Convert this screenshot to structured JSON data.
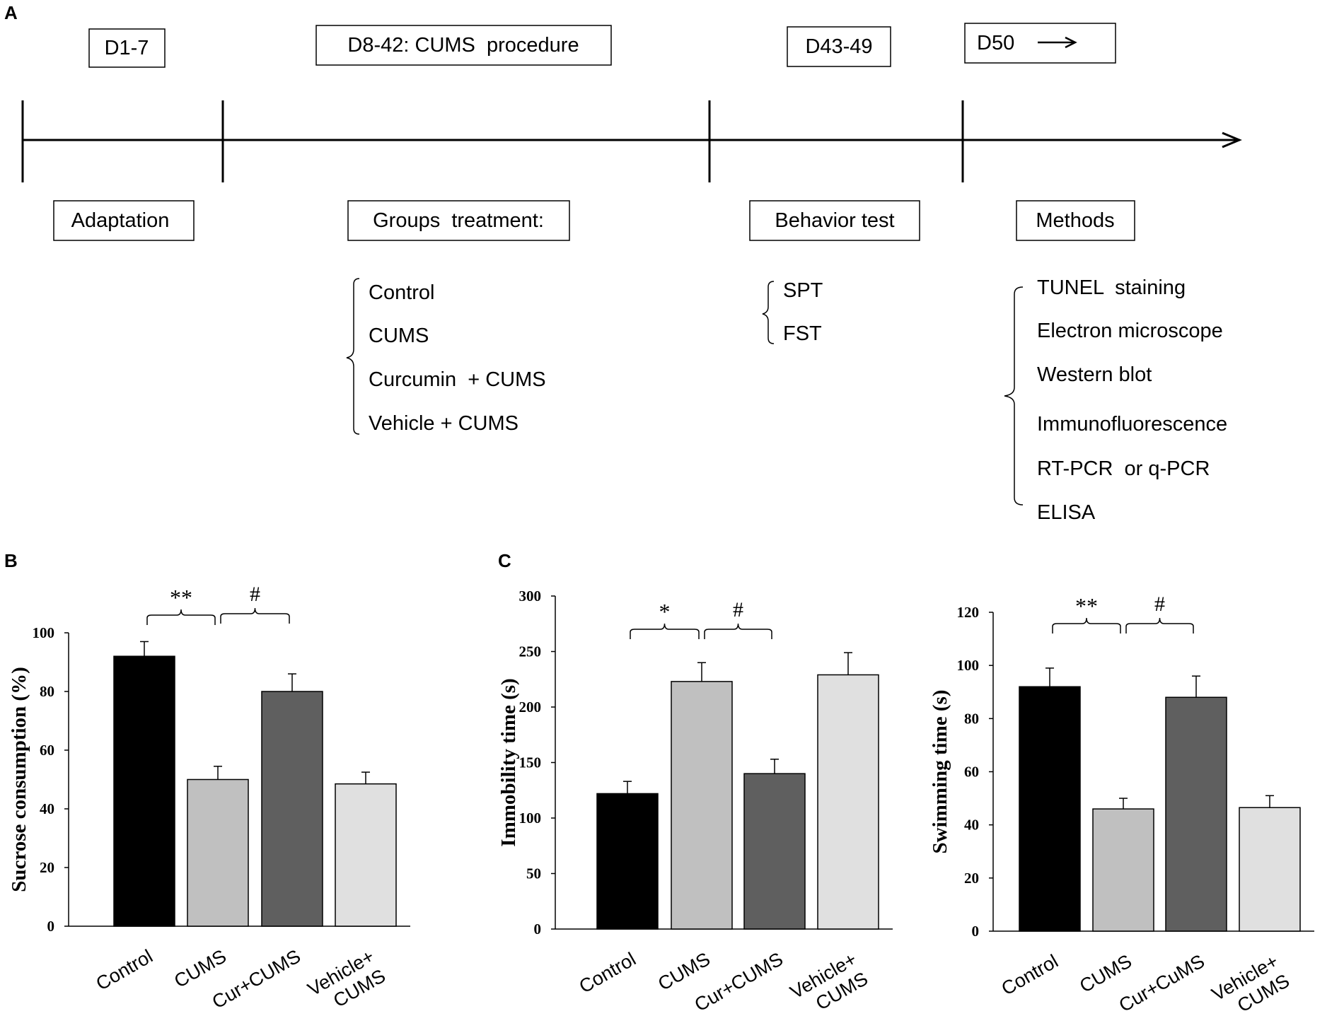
{
  "panel_labels": {
    "a": "A",
    "b": "B",
    "c": "C"
  },
  "timeline": {
    "top_boxes": [
      "D1-7",
      "D8-42: CUMS  procedure",
      "D43-49"
    ],
    "d50_label": "D50",
    "bottom_boxes": [
      "Adaptation",
      "Groups  treatment:",
      "Behavior test",
      "Methods"
    ],
    "groups": [
      "Control",
      "CUMS",
      "Curcumin  + CUMS",
      "Vehicle + CUMS"
    ],
    "tests": [
      "SPT",
      "FST"
    ],
    "methods": [
      "TUNEL  staining",
      "Electron microscope",
      "Western blot",
      "Immunofluorescence",
      "RT-PCR  or q-PCR",
      "ELISA"
    ]
  },
  "colors": {
    "control": "#000000",
    "cums": "#c0c0c0",
    "cur_cums": "#5f5f5f",
    "vehicle_cums": "#e0e0e0",
    "axis": "#000000"
  },
  "chart_data": [
    {
      "id": "B",
      "type": "bar",
      "ylabel": "Sucrose consumption (%)",
      "ylim": [
        0,
        100
      ],
      "yticks": [
        0,
        20,
        40,
        60,
        80,
        100
      ],
      "ytick_labels": [
        "0",
        "20",
        "40",
        "60",
        "80",
        "100"
      ],
      "categories": [
        "Control",
        "CUMS",
        "Cur+CUMS",
        "Vehicle+\nCUMS"
      ],
      "values": [
        92,
        50,
        80,
        48.5
      ],
      "errors": [
        5,
        4.5,
        6,
        4
      ],
      "significance": [
        {
          "label": "**",
          "from": 0,
          "to": 1
        },
        {
          "label": "#",
          "from": 1,
          "to": 2
        }
      ]
    },
    {
      "id": "C1",
      "type": "bar",
      "ylabel": "Immobility time (s)",
      "ylim": [
        0,
        300
      ],
      "yticks": [
        0,
        50,
        100,
        150,
        200,
        250,
        300
      ],
      "ytick_labels": [
        "0",
        "50",
        "100",
        "150",
        "200",
        "250",
        "300"
      ],
      "categories": [
        "Control",
        "CUMS",
        "Cur+CUMS",
        "Vehicle+\nCUMS"
      ],
      "values": [
        122,
        223,
        140,
        229
      ],
      "errors": [
        11,
        17,
        13,
        20
      ],
      "significance": [
        {
          "label": "*",
          "from": 0,
          "to": 1
        },
        {
          "label": "#",
          "from": 1,
          "to": 2
        }
      ]
    },
    {
      "id": "C2",
      "type": "bar",
      "ylabel": "Swimming time (s)",
      "ylim": [
        0,
        120
      ],
      "yticks": [
        0,
        20,
        40,
        60,
        80,
        100,
        120
      ],
      "ytick_labels": [
        "0",
        "20",
        "40",
        "60",
        "80",
        "100",
        "120"
      ],
      "categories": [
        "Control",
        "CUMS",
        "Cur+CuMS",
        "Vehicle+\nCUMS"
      ],
      "values": [
        92,
        46,
        88,
        46.5
      ],
      "errors": [
        7,
        4,
        8,
        4.5
      ],
      "significance": [
        {
          "label": "**",
          "from": 0,
          "to": 1
        },
        {
          "label": "#",
          "from": 1,
          "to": 2
        }
      ]
    }
  ]
}
